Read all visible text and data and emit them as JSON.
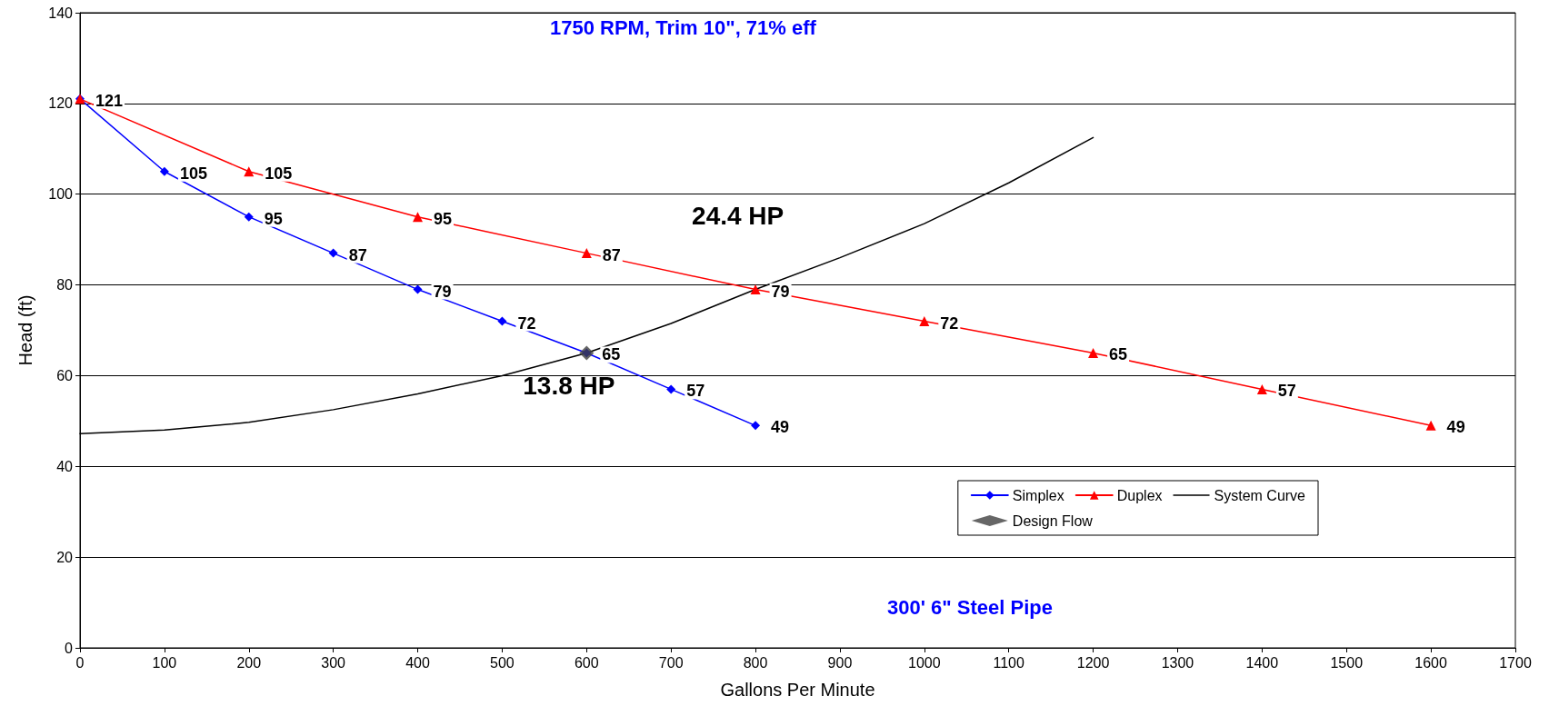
{
  "chart_data": {
    "type": "line",
    "title": "1750 RPM, Trim 10\", 71% eff",
    "xlabel": "Gallons Per Minute",
    "ylabel": "Head (ft)",
    "xlim": [
      0,
      1700
    ],
    "xticks": [
      0,
      100,
      200,
      300,
      400,
      500,
      600,
      700,
      800,
      900,
      1000,
      1100,
      1200,
      1300,
      1400,
      1500,
      1600,
      1700
    ],
    "ylim": [
      0,
      140
    ],
    "yticks": [
      0,
      20,
      40,
      60,
      80,
      100,
      120,
      140
    ],
    "grid": "y",
    "legend": "bottom right",
    "line_style": "solid",
    "series": [
      {
        "name": "Simplex",
        "color": "#0000ff",
        "marker": "diamond",
        "x": [
          0,
          100,
          200,
          300,
          400,
          500,
          600,
          700,
          800
        ],
        "values": [
          121,
          105,
          95,
          87,
          79,
          72,
          65,
          57,
          49
        ],
        "value_labels": [
          "121",
          "105",
          "95",
          "87",
          "79",
          "72",
          "65",
          "57",
          "49"
        ]
      },
      {
        "name": "Duplex",
        "color": "#ff0000",
        "marker": "triangle",
        "x": [
          0,
          200,
          400,
          600,
          800,
          1000,
          1200,
          1400,
          1600
        ],
        "values": [
          121,
          105,
          95,
          87,
          79,
          72,
          65,
          57,
          49
        ],
        "value_labels": [
          null,
          "105",
          "95",
          "87",
          "79",
          "72",
          "65",
          "57",
          "49"
        ]
      },
      {
        "name": "System Curve",
        "color": "#000000",
        "marker": "none",
        "x": [
          0,
          100,
          200,
          300,
          400,
          500,
          600,
          700,
          800,
          900,
          1000,
          1100,
          1200
        ],
        "values": [
          47.2,
          48,
          49.7,
          52.5,
          56,
          60,
          65,
          71.5,
          79,
          86,
          93.5,
          102.5,
          112.5
        ]
      },
      {
        "name": "Design Flow",
        "type": "scatter",
        "color": "#404040",
        "marker": "diamond",
        "x": [
          600
        ],
        "values": [
          65
        ]
      }
    ],
    "annotations": [
      {
        "text": "24.4 HP",
        "x": 800,
        "y": 79
      },
      {
        "text": "13.8 HP",
        "x": 600,
        "y": 65
      },
      "300' 6\" Steel Pipe"
    ]
  }
}
